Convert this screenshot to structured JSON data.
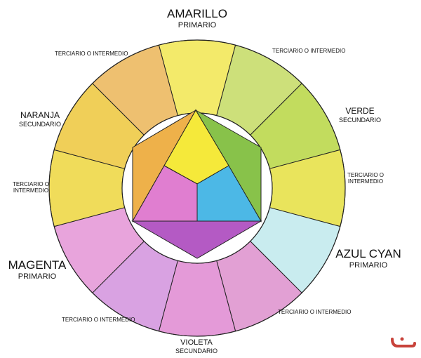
{
  "labels": {
    "amarillo": {
      "name": "AMARILLO",
      "type": "PRIMARIO"
    },
    "verde": {
      "name": "VERDE",
      "type": "SECUNDARIO"
    },
    "azul": {
      "name": "AZUL CYAN",
      "type": "PRIMARIO"
    },
    "violeta": {
      "name": "VIOLETA",
      "type": "SECUNDARIO"
    },
    "magenta": {
      "name": "MAGENTA",
      "type": "PRIMARIO"
    },
    "naranja": {
      "name": "NARANJA",
      "type": "SECUNDARIO"
    },
    "terciario_top_left": "TERCIARIO O INTERMEDIO",
    "terciario_top_right": "TERCIARIO O INTERMEDIO",
    "terciario_right_1": "TERCIARIO O",
    "terciario_right_2": "INTERMEDIO",
    "terciario_bottom_right": "TERCIARIO O INTERMEDIO",
    "terciario_bottom_left": "TERCIARIO O INTERMEDIO",
    "terciario_left_1": "TERCIARIO O",
    "terciario_left_2": "INTERMEDIO"
  },
  "wheel_segments": [
    {
      "name": "amarillo",
      "color": "#f3ea6a"
    },
    {
      "name": "amarillo-verde",
      "color": "#cde07a"
    },
    {
      "name": "verde",
      "color": "#c2dc5e"
    },
    {
      "name": "verde-azul",
      "color": "#e9e45c"
    },
    {
      "name": "azul-cyan",
      "color": "#c9ecef"
    },
    {
      "name": "azul-violeta",
      "color": "#e2a0d4"
    },
    {
      "name": "violeta",
      "color": "#e49ad8"
    },
    {
      "name": "violeta-magenta",
      "color": "#d9a2e2"
    },
    {
      "name": "magenta",
      "color": "#e8a4dc"
    },
    {
      "name": "magenta-naranja",
      "color": "#f0dc5a"
    },
    {
      "name": "naranja",
      "color": "#f0cf58"
    },
    {
      "name": "naranja-amarillo",
      "color": "#eec070"
    }
  ],
  "center_colors": {
    "triangle_yellow": "#f5e93a",
    "triangle_magenta": "#e07ed0",
    "triangle_cyan": "#4cb8e6",
    "hex_orange": "#eeb14a",
    "hex_green": "#88c24a",
    "hex_violet": "#b45ac4"
  },
  "logo_color": "#c8423a"
}
